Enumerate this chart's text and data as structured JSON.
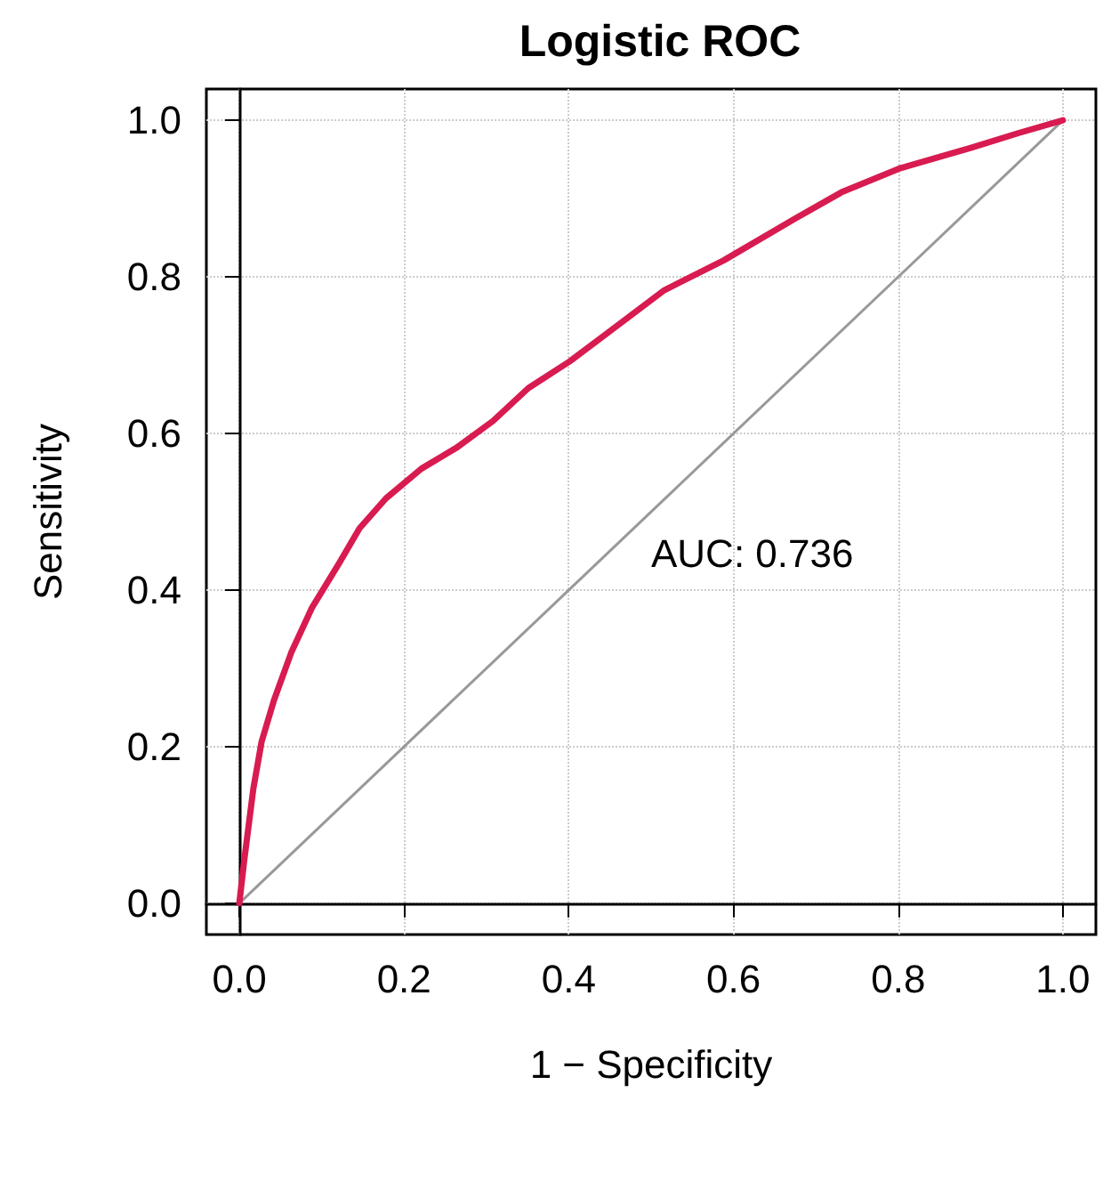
{
  "chart_data": {
    "type": "line",
    "title": "Logistic ROC",
    "xlabel": "1 − Specificity",
    "ylabel": "Sensitivity",
    "xlim": [
      -0.04,
      1.04
    ],
    "ylim": [
      -0.04,
      1.04
    ],
    "xticks": [
      {
        "value": 0,
        "label": "0.0"
      },
      {
        "value": 0.2,
        "label": "0.2"
      },
      {
        "value": 0.4,
        "label": "0.4"
      },
      {
        "value": 0.6,
        "label": "0.6"
      },
      {
        "value": 0.8,
        "label": "0.8"
      },
      {
        "value": 1,
        "label": "1.0"
      }
    ],
    "yticks": [
      {
        "value": 0,
        "label": "0.0"
      },
      {
        "value": 0.2,
        "label": "0.2"
      },
      {
        "value": 0.4,
        "label": "0.4"
      },
      {
        "value": 0.6,
        "label": "0.6"
      },
      {
        "value": 0.8,
        "label": "0.8"
      },
      {
        "value": 1,
        "label": "1.0"
      }
    ],
    "grid": true,
    "marker": "none",
    "annotations": [
      "AUC: 0.736"
    ],
    "series": [
      {
        "color": "#999999",
        "x": [
          0,
          1
        ],
        "values": [
          0,
          1
        ]
      },
      {
        "color": "#d81b50",
        "x": [
          0,
          0.006,
          0.017,
          0.027,
          0.042,
          0.063,
          0.088,
          0.121,
          0.146,
          0.178,
          0.221,
          0.264,
          0.308,
          0.351,
          0.401,
          0.444,
          0.487,
          0.516,
          0.588,
          0.674,
          0.731,
          0.803,
          0.889,
          0.947,
          1
        ],
        "values": [
          0,
          0.055,
          0.146,
          0.206,
          0.259,
          0.32,
          0.377,
          0.434,
          0.479,
          0.517,
          0.555,
          0.582,
          0.616,
          0.658,
          0.692,
          0.726,
          0.76,
          0.783,
          0.821,
          0.874,
          0.908,
          0.939,
          0.965,
          0.984,
          1
        ]
      }
    ]
  }
}
